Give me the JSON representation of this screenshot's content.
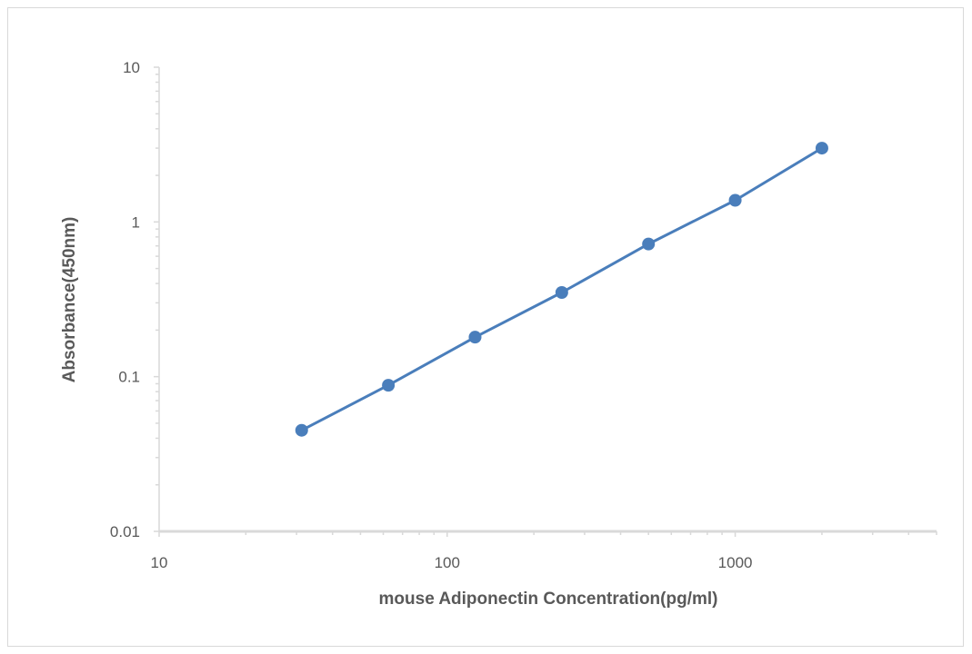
{
  "chart_data": {
    "type": "scatter",
    "title": "",
    "xlabel": "mouse Adiponectin  Concentration(pg/ml)",
    "ylabel": "Absorbance(450nm)",
    "x_scale": "log",
    "y_scale": "log",
    "xlim": [
      10,
      5000
    ],
    "ylim": [
      0.01,
      10
    ],
    "x_ticks": [
      10,
      100,
      1000
    ],
    "x_tick_labels": [
      "10",
      "100",
      "1000"
    ],
    "y_ticks": [
      0.01,
      0.1,
      1,
      10
    ],
    "y_tick_labels": [
      "0.01",
      "0.1",
      "1",
      "10"
    ],
    "grid": false,
    "legend": "none",
    "series": [
      {
        "x": [
          31.25,
          62.5,
          125,
          250,
          500,
          1000,
          2000
        ],
        "y": [
          0.045,
          0.088,
          0.18,
          0.35,
          0.72,
          1.38,
          3.0
        ],
        "marker": "circle",
        "line": true,
        "color": "#4a7ebb"
      }
    ]
  }
}
